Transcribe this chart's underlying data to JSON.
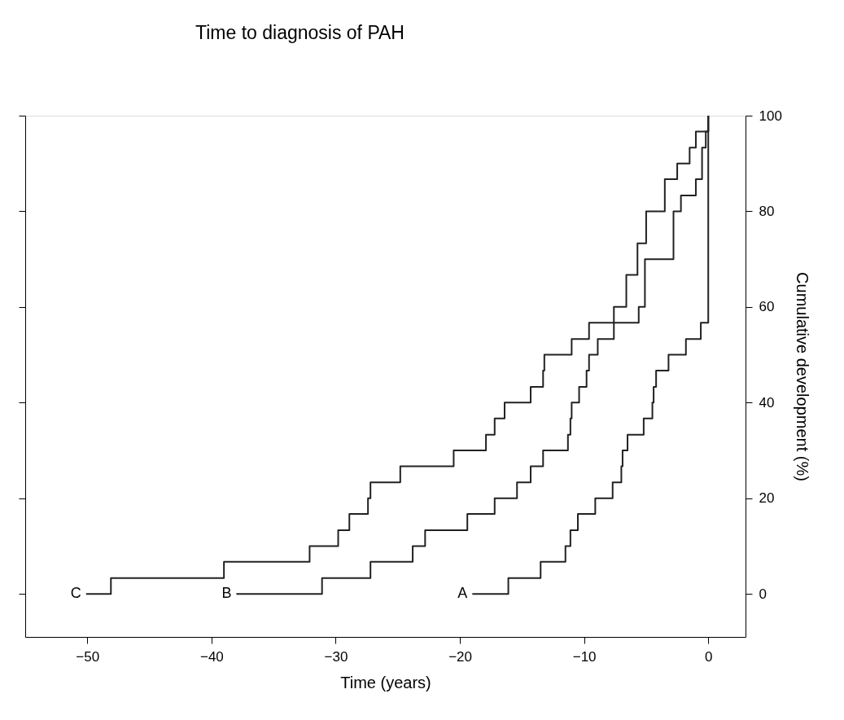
{
  "chart_data": {
    "type": "step",
    "title": "Time to diagnosis of PAH",
    "xlabel": "Time (years)",
    "ylabel": "Cumulative development (%)",
    "xlim": [
      -55,
      3
    ],
    "xticks": [
      -50,
      -40,
      -30,
      -20,
      -10,
      0
    ],
    "ylim": [
      -9,
      100
    ],
    "yticks": [
      0,
      20,
      40,
      60,
      80,
      100
    ],
    "grid": false,
    "legend": false,
    "line_style": "solid",
    "series": [
      {
        "name": "A",
        "color": "#222222",
        "x": [
          -19.0,
          -16.1,
          -13.5,
          -11.5,
          -11.1,
          -10.5,
          -9.1,
          -7.7,
          -7.0,
          -6.9,
          -6.5,
          -5.2,
          -4.5,
          -4.4,
          -4.2,
          -3.2,
          -1.8,
          -0.6,
          0
        ],
        "values": [
          0,
          3.3,
          6.7,
          10,
          13.3,
          16.7,
          20,
          23.3,
          26.7,
          30,
          33.3,
          36.7,
          40,
          43.3,
          46.7,
          50,
          53.3,
          56.7,
          100
        ]
      },
      {
        "name": "B",
        "color": "#222222",
        "x": [
          -38.0,
          -31.1,
          -27.2,
          -23.8,
          -22.8,
          -19.4,
          -17.2,
          -15.4,
          -14.3,
          -13.3,
          -11.3,
          -11.1,
          -11.0,
          -10.4,
          -9.8,
          -9.6,
          -8.9,
          -7.6,
          -6.6,
          -5.7,
          -5.0,
          -3.5,
          -2.5,
          -1.5,
          -1.0,
          0
        ],
        "values": [
          0,
          3.3,
          6.7,
          10,
          13.3,
          16.7,
          20,
          23.3,
          26.7,
          30,
          33.3,
          36.7,
          40,
          43.3,
          46.7,
          50,
          53.3,
          60,
          66.7,
          73.3,
          80,
          86.7,
          90,
          93.3,
          96.7,
          100
        ]
      },
      {
        "name": "C",
        "color": "#222222",
        "x": [
          -50.1,
          -48.1,
          -39.0,
          -32.1,
          -29.8,
          -28.9,
          -27.4,
          -27.2,
          -24.8,
          -20.5,
          -17.9,
          -17.2,
          -16.4,
          -14.3,
          -13.3,
          -13.2,
          -11.0,
          -9.6,
          -5.6,
          -5.1,
          -2.8,
          -2.2,
          -1.0,
          -0.5,
          -0.2,
          0
        ],
        "values": [
          0,
          3.3,
          6.7,
          10,
          13.3,
          16.7,
          20,
          23.3,
          26.7,
          30,
          33.3,
          36.7,
          40,
          43.3,
          46.7,
          50,
          53.3,
          56.7,
          60,
          70,
          80,
          83.3,
          86.7,
          93.3,
          96.7,
          100
        ]
      }
    ]
  }
}
